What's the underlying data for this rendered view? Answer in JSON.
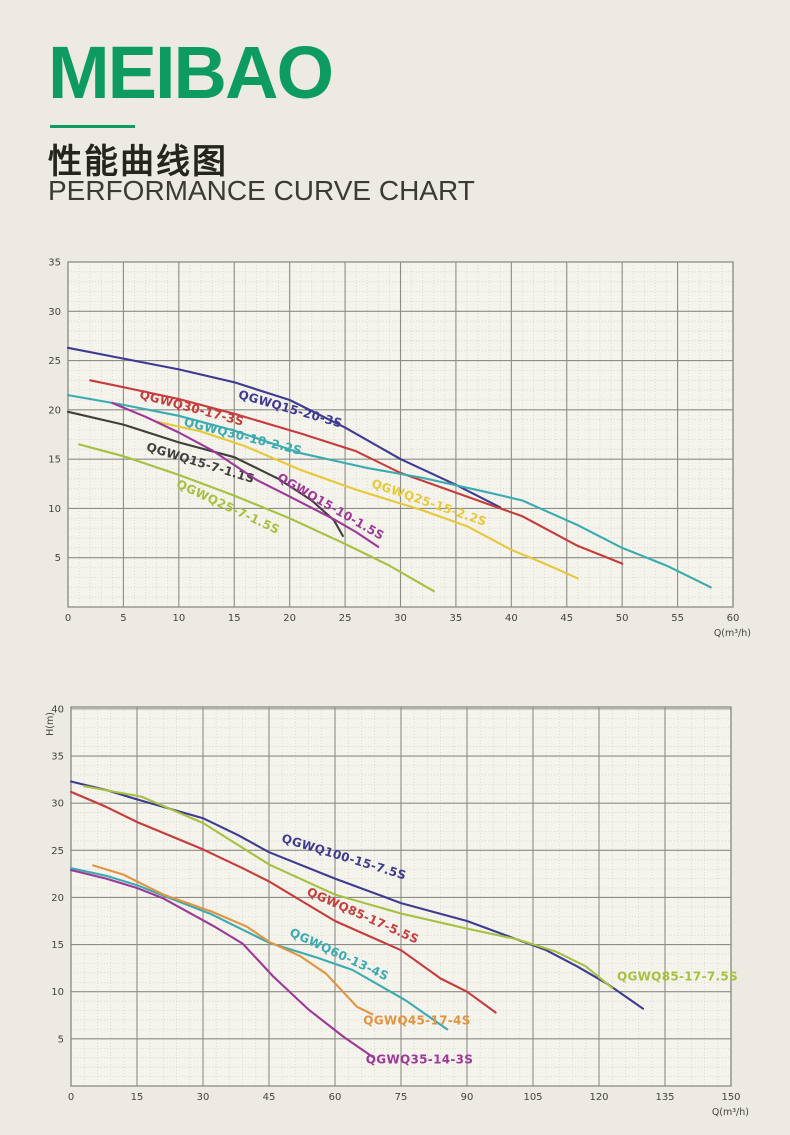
{
  "header": {
    "brand": "MEIBAO",
    "brand_color": "#0d9b62",
    "title_zh": "性能曲线图",
    "title_en": "PERFORMANCE CURVE CHART"
  },
  "chart_data": [
    {
      "type": "line",
      "title": "",
      "xlabel": "Q(m³/h)",
      "ylabel": "",
      "xlim": [
        0,
        60
      ],
      "ylim": [
        0,
        35
      ],
      "x_major": 5,
      "x_minor": 1,
      "y_major": 5,
      "y_minor": 1,
      "x_ticks": [
        0,
        5,
        10,
        15,
        20,
        25,
        30,
        35,
        40,
        45,
        50,
        55,
        60
      ],
      "y_ticks": [
        5,
        10,
        15,
        20,
        25,
        30,
        35
      ],
      "grid": "on",
      "plot_bg": "#f4f3ec",
      "grid_major": "#8d8d86",
      "grid_minor": "#d9cfc7",
      "tick_color": "#45453d",
      "series": [
        {
          "name": "QGWQ15-20-3S",
          "color": "#3e3b92",
          "points": [
            [
              0,
              26.3
            ],
            [
              5,
              25.2
            ],
            [
              10,
              24.1
            ],
            [
              15,
              22.8
            ],
            [
              20,
              21.0
            ],
            [
              25,
              18.2
            ],
            [
              30,
              15.0
            ],
            [
              35,
              12.4
            ],
            [
              39,
              10.1
            ]
          ],
          "label": {
            "x": 15.3,
            "y": 21.2,
            "angle": 16
          }
        },
        {
          "name": "QGWQ30-17-3S",
          "color": "#c63c3c",
          "points": [
            [
              2,
              23.0
            ],
            [
              5,
              22.3
            ],
            [
              10,
              21.1
            ],
            [
              15,
              19.6
            ],
            [
              21,
              17.6
            ],
            [
              26,
              15.8
            ],
            [
              30,
              13.6
            ],
            [
              36,
              11.2
            ],
            [
              41,
              9.2
            ],
            [
              46,
              6.2
            ],
            [
              50,
              4.4
            ]
          ],
          "label": {
            "x": 6.4,
            "y": 21.2,
            "angle": 15
          }
        },
        {
          "name": "QGWQ30-10-2.2S",
          "color": "#3aabb0",
          "points": [
            [
              0,
              21.5
            ],
            [
              5,
              20.5
            ],
            [
              10,
              19.4
            ],
            [
              15,
              17.9
            ],
            [
              21,
              15.6
            ],
            [
              27,
              14.1
            ],
            [
              32,
              13.1
            ],
            [
              38,
              11.6
            ],
            [
              41,
              10.8
            ],
            [
              46,
              8.3
            ],
            [
              50,
              6.0
            ],
            [
              54,
              4.2
            ],
            [
              58,
              2.0
            ]
          ],
          "label": {
            "x": 10.4,
            "y": 18.4,
            "angle": 14
          }
        },
        {
          "name": "QGWQ25-15-2.2S",
          "color": "#e8c838",
          "points": [
            [
              8,
              18.8
            ],
            [
              12,
              17.8
            ],
            [
              16,
              16.3
            ],
            [
              21,
              13.9
            ],
            [
              26,
              11.9
            ],
            [
              32,
              9.8
            ],
            [
              36,
              8.2
            ],
            [
              40,
              5.8
            ],
            [
              43,
              4.4
            ],
            [
              46,
              2.9
            ]
          ],
          "label": {
            "x": 27.3,
            "y": 12.2,
            "angle": 19
          }
        },
        {
          "name": "QGWQ15-7-1.1S",
          "color": "#3f3f3d",
          "points": [
            [
              0,
              19.8
            ],
            [
              5,
              18.5
            ],
            [
              10,
              16.7
            ],
            [
              15,
              15.2
            ],
            [
              19,
              13.0
            ],
            [
              22,
              10.8
            ],
            [
              24,
              8.8
            ],
            [
              24.8,
              7.2
            ]
          ],
          "label": {
            "x": 7.0,
            "y": 15.9,
            "angle": 17
          }
        },
        {
          "name": "QGWQ15-10-1.5S",
          "color": "#9e3898",
          "points": [
            [
              4,
              20.7
            ],
            [
              7,
              19.3
            ],
            [
              10,
              17.7
            ],
            [
              13,
              15.9
            ],
            [
              17,
              12.9
            ],
            [
              20,
              11.2
            ],
            [
              24,
              8.9
            ],
            [
              26,
              7.6
            ],
            [
              28,
              6.1
            ]
          ],
          "label": {
            "x": 18.8,
            "y": 12.9,
            "angle": 30
          }
        },
        {
          "name": "QGWQ25-7-1.5S",
          "color": "#a6c03f",
          "points": [
            [
              1,
              16.5
            ],
            [
              5,
              15.3
            ],
            [
              10,
              13.4
            ],
            [
              15,
              11.3
            ],
            [
              20,
              9.0
            ],
            [
              25,
              6.4
            ],
            [
              29,
              4.2
            ],
            [
              33,
              1.6
            ]
          ],
          "label": {
            "x": 9.7,
            "y": 12.2,
            "angle": 25
          }
        }
      ]
    },
    {
      "type": "line",
      "title": "",
      "xlabel": "Q(m³/h)",
      "ylabel": "H(m)",
      "xlim": [
        0,
        150
      ],
      "ylim": [
        0,
        40.2
      ],
      "x_major": 15,
      "x_minor": 3,
      "y_major": 5,
      "y_minor": 1,
      "x_ticks": [
        0,
        15,
        30,
        45,
        60,
        75,
        90,
        105,
        120,
        135,
        150
      ],
      "y_ticks": [
        5,
        10,
        15,
        20,
        25,
        30,
        35,
        40
      ],
      "grid": "on",
      "plot_bg": "#f4f3ec",
      "grid_major": "#8d8d86",
      "grid_minor": "#d9cfc7",
      "tick_color": "#45453d",
      "series": [
        {
          "name": "QGWQ100-15-7.5S",
          "color": "#3e3b92",
          "points": [
            [
              0,
              32.3
            ],
            [
              8,
              31.4
            ],
            [
              15,
              30.4
            ],
            [
              30,
              28.4
            ],
            [
              38,
              26.6
            ],
            [
              45,
              24.8
            ],
            [
              60,
              22.0
            ],
            [
              75,
              19.4
            ],
            [
              90,
              17.5
            ],
            [
              101,
              15.6
            ],
            [
              108,
              14.4
            ],
            [
              115,
              12.7
            ],
            [
              122,
              10.8
            ],
            [
              130,
              8.2
            ]
          ],
          "label": {
            "x": 47.7,
            "y": 25.9,
            "angle": 17
          }
        },
        {
          "name": "QGWQ85-17-7.5S",
          "color": "#a6c03f",
          "points": [
            [
              3,
              31.8
            ],
            [
              10,
              31.2
            ],
            [
              16,
              30.7
            ],
            [
              30,
              27.9
            ],
            [
              45,
              23.5
            ],
            [
              60,
              20.3
            ],
            [
              75,
              18.3
            ],
            [
              90,
              16.7
            ],
            [
              101,
              15.6
            ],
            [
              110,
              14.3
            ],
            [
              117,
              12.7
            ],
            [
              123,
              10.4
            ]
          ],
          "label": {
            "x": 124.1,
            "y": 11.2,
            "angle": 0
          }
        },
        {
          "name": "QGWQ85-17-5.5S",
          "color": "#c63c3c",
          "points": [
            [
              0,
              31.2
            ],
            [
              8,
              29.6
            ],
            [
              15,
              28.0
            ],
            [
              30,
              25.1
            ],
            [
              39,
              23.1
            ],
            [
              45,
              21.7
            ],
            [
              60,
              17.5
            ],
            [
              75,
              14.4
            ],
            [
              84,
              11.4
            ],
            [
              90,
              10.0
            ],
            [
              96.5,
              7.8
            ]
          ],
          "label": {
            "x": 53.4,
            "y": 20.3,
            "angle": 24
          }
        },
        {
          "name": "QGWQ60-13-4S",
          "color": "#3aabb0",
          "points": [
            [
              0,
              23.1
            ],
            [
              8,
              22.3
            ],
            [
              15,
              21.3
            ],
            [
              21,
              20.2
            ],
            [
              32,
              18.2
            ],
            [
              45,
              15.2
            ],
            [
              56,
              13.6
            ],
            [
              64,
              12.3
            ],
            [
              76,
              9.1
            ],
            [
              85.5,
              6.0
            ]
          ],
          "label": {
            "x": 49.5,
            "y": 16.0,
            "angle": 25
          }
        },
        {
          "name": "QGWQ45-17-4S",
          "color": "#e39440",
          "points": [
            [
              5,
              23.4
            ],
            [
              12,
              22.4
            ],
            [
              21,
              20.3
            ],
            [
              32,
              18.5
            ],
            [
              40,
              16.9
            ],
            [
              45,
              15.3
            ],
            [
              52,
              13.8
            ],
            [
              58,
              11.9
            ],
            [
              65,
              8.4
            ],
            [
              68.5,
              7.6
            ]
          ],
          "label": {
            "x": 66.4,
            "y": 6.5,
            "angle": 0
          }
        },
        {
          "name": "QGWQ35-14-3S",
          "color": "#9e3898",
          "points": [
            [
              0,
              22.9
            ],
            [
              8,
              22.0
            ],
            [
              15,
              21.0
            ],
            [
              21,
              19.9
            ],
            [
              33,
              16.8
            ],
            [
              39,
              15.1
            ],
            [
              46,
              11.6
            ],
            [
              54,
              8.1
            ],
            [
              62,
              5.2
            ],
            [
              68.5,
              3.1
            ]
          ],
          "label": {
            "x": 67.0,
            "y": 2.4,
            "angle": 0
          }
        }
      ]
    }
  ]
}
